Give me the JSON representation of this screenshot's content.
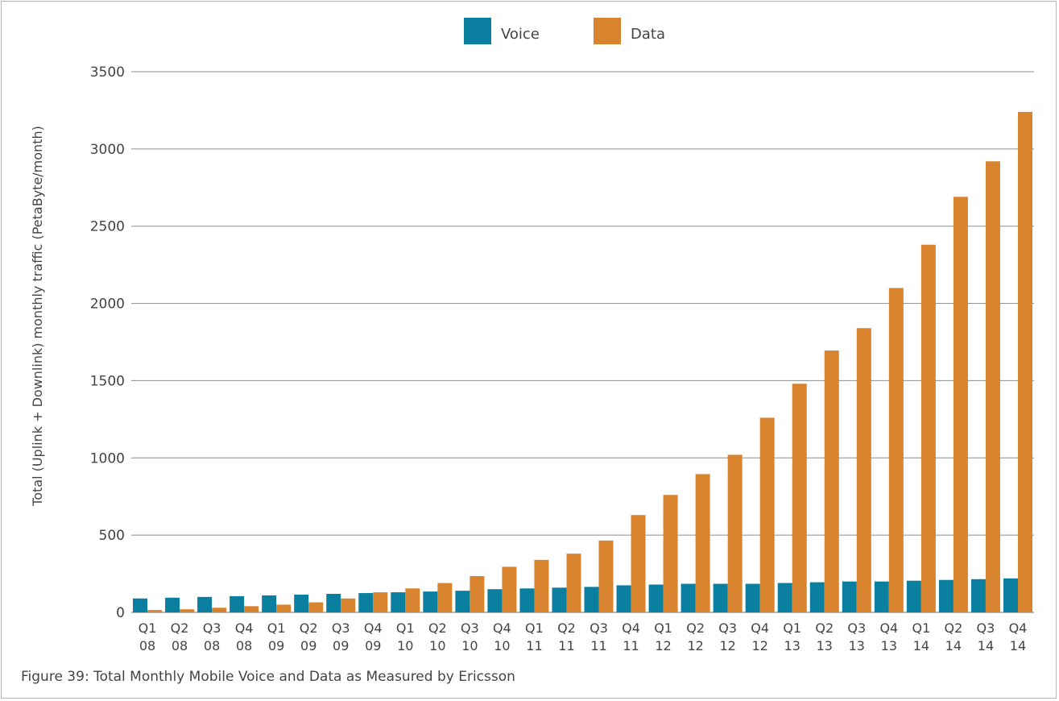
{
  "caption": "Figure 39: Total Monthly Mobile Voice and Data as Measured by Ericsson",
  "colors": {
    "voice": "#0a7f9f",
    "data": "#d8842f",
    "grid": "#8c8c8c",
    "frame": "#b5b5b5"
  },
  "chart_data": {
    "type": "bar",
    "title": "",
    "xlabel": "",
    "ylabel": "Total (Uplink + Downlink) monthly traffic (PetaByte/month)",
    "ylim": [
      0,
      3500
    ],
    "yticks": [
      0,
      500,
      1000,
      1500,
      2000,
      2500,
      3000,
      3500
    ],
    "grid": true,
    "legend_position": "top-center",
    "categories": [
      [
        "Q1",
        "08"
      ],
      [
        "Q2",
        "08"
      ],
      [
        "Q3",
        "08"
      ],
      [
        "Q4",
        "08"
      ],
      [
        "Q1",
        "09"
      ],
      [
        "Q2",
        "09"
      ],
      [
        "Q3",
        "09"
      ],
      [
        "Q4",
        "09"
      ],
      [
        "Q1",
        "10"
      ],
      [
        "Q2",
        "10"
      ],
      [
        "Q3",
        "10"
      ],
      [
        "Q4",
        "10"
      ],
      [
        "Q1",
        "11"
      ],
      [
        "Q2",
        "11"
      ],
      [
        "Q3",
        "11"
      ],
      [
        "Q4",
        "11"
      ],
      [
        "Q1",
        "12"
      ],
      [
        "Q2",
        "12"
      ],
      [
        "Q3",
        "12"
      ],
      [
        "Q4",
        "12"
      ],
      [
        "Q1",
        "13"
      ],
      [
        "Q2",
        "13"
      ],
      [
        "Q3",
        "13"
      ],
      [
        "Q4",
        "13"
      ],
      [
        "Q1",
        "14"
      ],
      [
        "Q2",
        "14"
      ],
      [
        "Q3",
        "14"
      ],
      [
        "Q4",
        "14"
      ]
    ],
    "series": [
      {
        "name": "Voice",
        "color": "#0a7f9f",
        "values": [
          90,
          95,
          100,
          105,
          110,
          115,
          120,
          125,
          130,
          135,
          140,
          150,
          155,
          160,
          165,
          175,
          180,
          185,
          185,
          185,
          190,
          195,
          200,
          200,
          205,
          210,
          215,
          220
        ]
      },
      {
        "name": "Data",
        "color": "#d8842f",
        "values": [
          15,
          20,
          30,
          40,
          50,
          65,
          90,
          130,
          155,
          190,
          235,
          295,
          340,
          380,
          465,
          630,
          760,
          895,
          1020,
          1260,
          1480,
          1695,
          1840,
          2100,
          2380,
          2690,
          2920,
          3240
        ]
      }
    ]
  }
}
